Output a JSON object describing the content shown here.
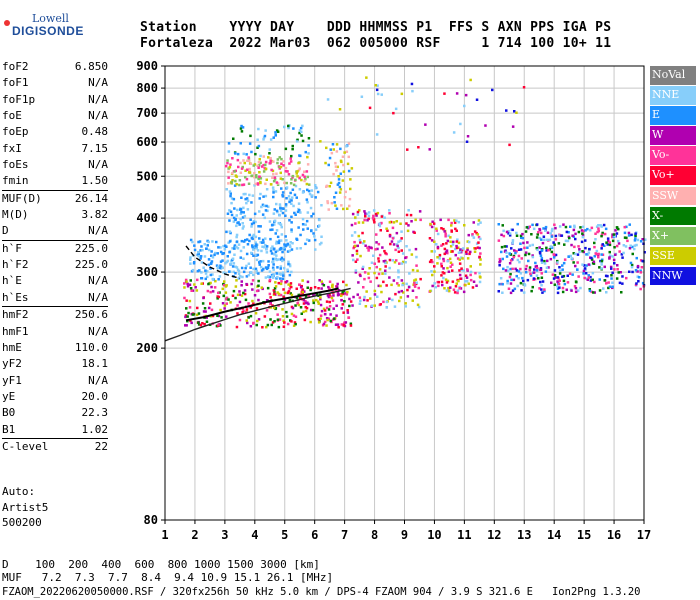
{
  "logo": {
    "top": "Lowell",
    "main": "DIGISONDE"
  },
  "header": {
    "line1": "Station    YYYY DAY    DDD HHMMSS P1  FFS S AXN PPS IGA PS",
    "line2": "Fortaleza  2022 Mar03  062 005000 RSF     1 714 100 10+ 11"
  },
  "params": [
    {
      "name": "foF2",
      "value": "6.850",
      "sep": false
    },
    {
      "name": "foF1",
      "value": "N/A",
      "sep": false
    },
    {
      "name": "foF1p",
      "value": "N/A",
      "sep": false
    },
    {
      "name": "foE",
      "value": "N/A",
      "sep": false
    },
    {
      "name": "foEp",
      "value": "0.48",
      "sep": false
    },
    {
      "name": "fxI",
      "value": "7.15",
      "sep": false
    },
    {
      "name": "foEs",
      "value": "N/A",
      "sep": false
    },
    {
      "name": "fmin",
      "value": "1.50",
      "sep": false
    },
    {
      "name": "MUF(D)",
      "value": "26.14",
      "sep": true
    },
    {
      "name": "M(D)",
      "value": "3.82",
      "sep": false
    },
    {
      "name": "D",
      "value": "N/A",
      "sep": false
    },
    {
      "name": "h`F",
      "value": "225.0",
      "sep": true
    },
    {
      "name": "h`F2",
      "value": "225.0",
      "sep": false
    },
    {
      "name": "h`E",
      "value": "N/A",
      "sep": false
    },
    {
      "name": "h`Es",
      "value": "N/A",
      "sep": false
    },
    {
      "name": "hmF2",
      "value": "250.6",
      "sep": true
    },
    {
      "name": "hmF1",
      "value": "N/A",
      "sep": false
    },
    {
      "name": "hmE",
      "value": "110.0",
      "sep": false
    },
    {
      "name": "yF2",
      "value": "18.1",
      "sep": false
    },
    {
      "name": "yF1",
      "value": "N/A",
      "sep": false
    },
    {
      "name": "yE",
      "value": "20.0",
      "sep": false
    },
    {
      "name": "B0",
      "value": "22.3",
      "sep": false
    },
    {
      "name": "B1",
      "value": "1.02",
      "sep": false
    },
    {
      "name": "C-level",
      "value": "22",
      "sep": true
    }
  ],
  "auto": {
    "l1": "Auto:",
    "l2": "Artist5",
    "l3": "500200"
  },
  "footer": {
    "d_line": "D    100  200  400  600  800 1000 1500 3000 [km]",
    "muf_line": "MUF   7.2  7.3  7.7  8.4  9.4 10.9 15.1 26.1 [MHz]",
    "file_line": "FZAOM_20220620050000.RSF / 320fx256h 50 kHz 5.0 km / DPS-4 FZAOM 904 / 3.9 S 321.6 E   Ion2Png 1.3.20"
  },
  "legend": [
    {
      "label": "NoVal",
      "color": "#808080"
    },
    {
      "label": "NNE",
      "color": "#87cefa"
    },
    {
      "label": "E",
      "color": "#1e90ff"
    },
    {
      "label": "W",
      "color": "#b000b0"
    },
    {
      "label": "Vo-",
      "color": "#ff3399"
    },
    {
      "label": "Vo+",
      "color": "#ff0033"
    },
    {
      "label": "SSW",
      "color": "#ffb0b0"
    },
    {
      "label": "X-",
      "color": "#007a00"
    },
    {
      "label": "X+",
      "color": "#80c060"
    },
    {
      "label": "SSE",
      "color": "#cccc00"
    },
    {
      "label": "NNW",
      "color": "#1010e0"
    }
  ],
  "chart_data": {
    "type": "scatter",
    "title": "",
    "xlabel": "",
    "ylabel": "",
    "xlim": [
      1,
      17
    ],
    "ylim": [
      80,
      900
    ],
    "y_scale": "log",
    "x_ticks": [
      1,
      2,
      3,
      4,
      5,
      6,
      7,
      8,
      9,
      10,
      11,
      12,
      13,
      14,
      15,
      16,
      17
    ],
    "y_ticks": [
      80,
      200,
      300,
      400,
      500,
      600,
      700,
      800,
      900
    ],
    "grid": true,
    "legend_position": "right",
    "clusters": [
      {
        "freq": [
          1.6,
          7.2
        ],
        "height": [
          225,
          290
        ],
        "colors": [
          "#ff0033",
          "#ff3399",
          "#007a00",
          "#b000b0",
          "#cccc00"
        ],
        "n": 420
      },
      {
        "freq": [
          1.8,
          5.2
        ],
        "height": [
          290,
          360
        ],
        "colors": [
          "#87cefa",
          "#1e90ff"
        ],
        "n": 260
      },
      {
        "freq": [
          3.0,
          6.2
        ],
        "height": [
          340,
          480
        ],
        "colors": [
          "#87cefa",
          "#1e90ff"
        ],
        "n": 240
      },
      {
        "freq": [
          3.0,
          5.8
        ],
        "height": [
          480,
          560
        ],
        "colors": [
          "#ff3399",
          "#cccc00",
          "#ffb0b0",
          "#80c060"
        ],
        "n": 160
      },
      {
        "freq": [
          3.0,
          5.8
        ],
        "height": [
          560,
          660
        ],
        "colors": [
          "#1e90ff",
          "#87cefa",
          "#007a00"
        ],
        "n": 60
      },
      {
        "freq": [
          6.3,
          7.2
        ],
        "height": [
          420,
          600
        ],
        "colors": [
          "#1e90ff",
          "#cccc00",
          "#ffb0b0"
        ],
        "n": 60
      },
      {
        "freq": [
          7.2,
          9.5
        ],
        "height": [
          250,
          420
        ],
        "colors": [
          "#ff0033",
          "#ff3399",
          "#b000b0",
          "#87cefa",
          "#cccc00"
        ],
        "n": 240
      },
      {
        "freq": [
          9.8,
          11.5
        ],
        "height": [
          270,
          400
        ],
        "colors": [
          "#b000b0",
          "#ff3399",
          "#ff0033",
          "#cccc00",
          "#87cefa"
        ],
        "n": 200
      },
      {
        "freq": [
          12.1,
          17.0
        ],
        "height": [
          270,
          390
        ],
        "colors": [
          "#1010e0",
          "#b000b0",
          "#ff3399",
          "#1e90ff",
          "#87cefa",
          "#007a00"
        ],
        "n": 520
      },
      {
        "freq": [
          6.0,
          13.0
        ],
        "height": [
          580,
          860
        ],
        "colors": [
          "#1010e0",
          "#b000b0",
          "#ff0033",
          "#87cefa",
          "#cccc00"
        ],
        "n": 40
      }
    ],
    "profile_curve": [
      [
        1.0,
        208
      ],
      [
        1.5,
        214
      ],
      [
        2.0,
        221
      ],
      [
        2.5,
        227
      ],
      [
        3.0,
        233
      ],
      [
        3.5,
        239
      ],
      [
        4.0,
        244
      ],
      [
        4.5,
        249
      ],
      [
        5.0,
        254
      ],
      [
        5.5,
        259
      ],
      [
        6.0,
        264
      ],
      [
        6.5,
        268
      ],
      [
        7.0,
        273
      ],
      [
        7.2,
        275
      ]
    ],
    "trace_curve": [
      [
        1.7,
        232
      ],
      [
        2.3,
        236
      ],
      [
        3.0,
        243
      ],
      [
        3.8,
        250
      ],
      [
        4.5,
        257
      ],
      [
        5.2,
        262
      ],
      [
        6.0,
        268
      ],
      [
        6.5,
        272
      ],
      [
        6.8,
        275
      ]
    ],
    "dashed_curve": [
      [
        1.7,
        345
      ],
      [
        2.0,
        325
      ],
      [
        2.5,
        308
      ],
      [
        3.0,
        297
      ],
      [
        3.5,
        290
      ]
    ]
  }
}
